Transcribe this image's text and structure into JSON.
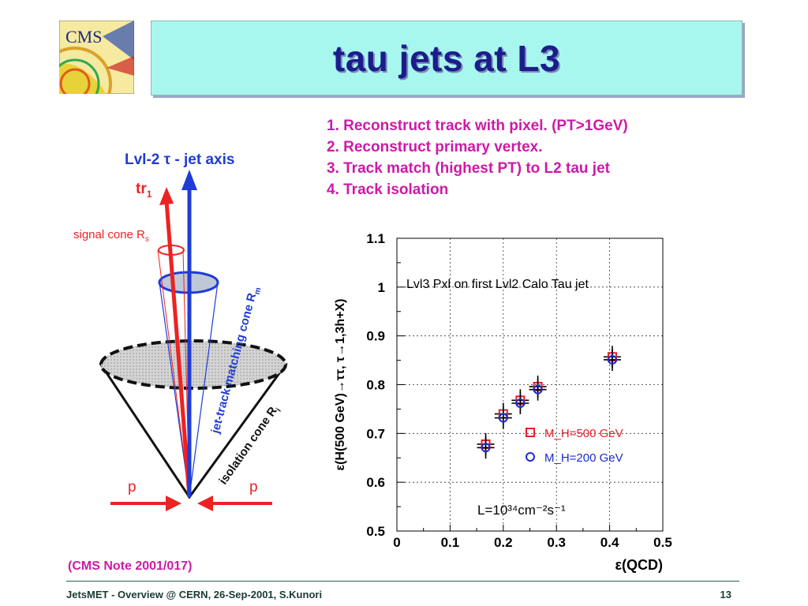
{
  "slide": {
    "title": "tau jets at L3",
    "steps": [
      "1. Reconstruct track with pixel. (PT>1GeV)",
      "2. Reconstruct primary vertex.",
      "3. Track match (highest PT) to L2 tau jet",
      "4. Track isolation"
    ],
    "citation": "(CMS Note 2001/017)",
    "footer_left": "JetsMET - Overview @ CERN, 26-Sep-2001, S.Kunori",
    "page_number": "13",
    "logo_text": "CMS"
  },
  "diagram": {
    "axis_label": "Lvl-2 τ - jet axis",
    "track_label": "tr",
    "track_subscript": "1",
    "signal_cone_label": "signal cone R",
    "signal_cone_sub": "s",
    "matching_cone_label": "jet-track matching cone R",
    "matching_cone_sub": "m",
    "isolation_cone_label": "isolation cone R",
    "isolation_cone_sub": "i",
    "beam_label_left": "p",
    "beam_label_right": "p"
  },
  "chart_data": {
    "type": "scatter",
    "title": "Lvl3 Pxl on first Lvl2 Calo Tau jet",
    "xlabel": "ε(QCD)",
    "ylabel": "ε(H(500 GeV)→ττ, τ→1,3h+X)",
    "xlim": [
      0,
      0.5
    ],
    "ylim": [
      0.5,
      1.1
    ],
    "x_ticks": [
      "0",
      "0.1",
      "0.2",
      "0.3",
      "0.4",
      "0.5"
    ],
    "y_ticks": [
      "0.5",
      "0.6",
      "0.7",
      "0.8",
      "0.9",
      "1",
      "1.1"
    ],
    "grid": true,
    "legend_position": "lower-right",
    "annotation": "L=10³⁴cm⁻²s⁻¹",
    "series": [
      {
        "name": "M_H=500 GeV",
        "marker": "square",
        "color": "#e0202a",
        "x": [
          0.167,
          0.2,
          0.232,
          0.265,
          0.405
        ],
        "y": [
          0.678,
          0.74,
          0.768,
          0.796,
          0.857
        ]
      },
      {
        "name": "M_H=200 GeV",
        "marker": "circle",
        "color": "#1a2bd0",
        "x": [
          0.167,
          0.2,
          0.232,
          0.265,
          0.405
        ],
        "y": [
          0.671,
          0.732,
          0.762,
          0.79,
          0.851
        ]
      }
    ]
  }
}
